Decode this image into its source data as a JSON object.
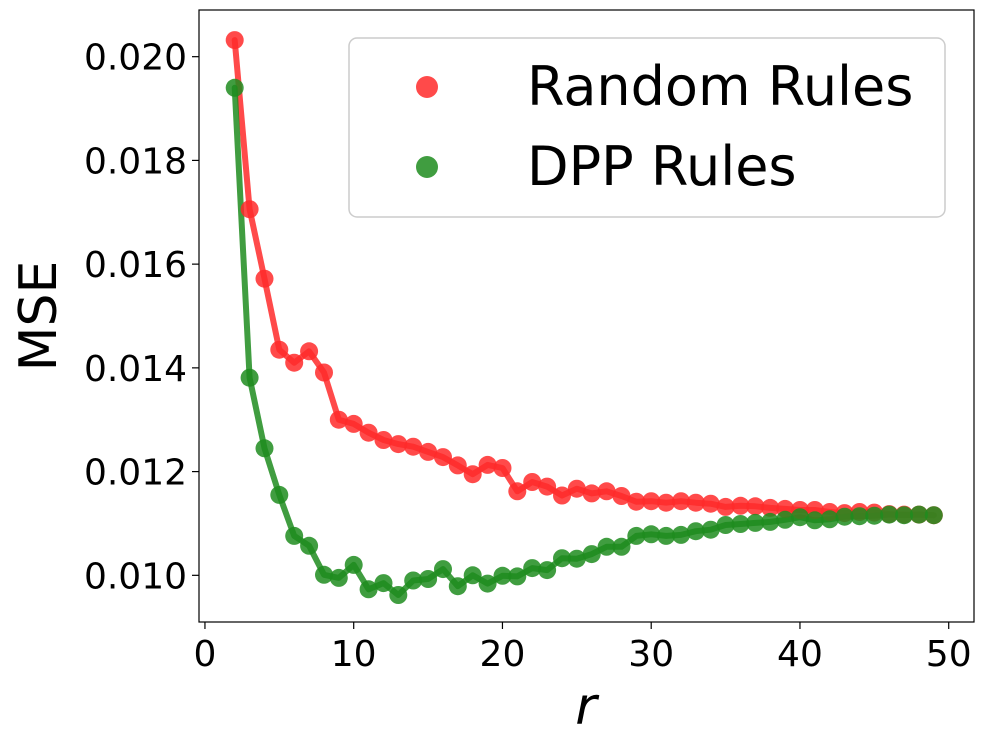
{
  "chart_data": {
    "type": "line",
    "title": "",
    "xlabel": "r",
    "ylabel": "MSE",
    "xlim": [
      -0.4,
      51.7
    ],
    "ylim": [
      0.0091,
      0.0209
    ],
    "xticks": [
      0,
      10,
      20,
      30,
      40,
      50
    ],
    "xtick_labels": [
      "0",
      "10",
      "20",
      "30",
      "40",
      "50"
    ],
    "yticks": [
      0.01,
      0.012,
      0.014,
      0.016,
      0.018,
      0.02
    ],
    "ytick_labels": [
      "0.010",
      "0.012",
      "0.014",
      "0.016",
      "0.018",
      "0.020"
    ],
    "grid": false,
    "legend_position": "top-right",
    "series": [
      {
        "name": "Random Rules",
        "color": "#ff2a2a",
        "x": [
          2,
          3,
          4,
          5,
          6,
          7,
          8,
          9,
          10,
          11,
          12,
          13,
          14,
          15,
          16,
          17,
          18,
          19,
          20,
          21,
          22,
          23,
          24,
          25,
          26,
          27,
          28,
          29,
          30,
          31,
          32,
          33,
          34,
          35,
          36,
          37,
          38,
          39,
          40,
          41,
          42,
          43,
          44,
          45,
          46,
          47,
          48,
          49
        ],
        "y": [
          0.02032,
          0.01706,
          0.01572,
          0.01435,
          0.0141,
          0.01432,
          0.01391,
          0.013,
          0.01292,
          0.01275,
          0.01261,
          0.01253,
          0.01248,
          0.01238,
          0.01228,
          0.01212,
          0.01195,
          0.01213,
          0.01207,
          0.01162,
          0.0118,
          0.01171,
          0.01154,
          0.01167,
          0.01158,
          0.01162,
          0.01153,
          0.01142,
          0.01143,
          0.0114,
          0.01143,
          0.0114,
          0.01138,
          0.01132,
          0.01134,
          0.01133,
          0.0113,
          0.01128,
          0.01126,
          0.01126,
          0.01122,
          0.0112,
          0.01122,
          0.01121,
          0.01118,
          0.01117,
          0.01117,
          0.01116
        ]
      },
      {
        "name": "DPP Rules",
        "color": "#1e8c1e",
        "x": [
          2,
          3,
          4,
          5,
          6,
          7,
          8,
          9,
          10,
          11,
          12,
          13,
          14,
          15,
          16,
          17,
          18,
          19,
          20,
          21,
          22,
          23,
          24,
          25,
          26,
          27,
          28,
          29,
          30,
          31,
          32,
          33,
          34,
          35,
          36,
          37,
          38,
          39,
          40,
          41,
          42,
          43,
          44,
          45,
          46,
          47,
          48,
          49
        ],
        "y": [
          0.0194,
          0.01381,
          0.01245,
          0.01155,
          0.01076,
          0.01057,
          0.01001,
          0.00995,
          0.0102,
          0.00973,
          0.00985,
          0.00962,
          0.0099,
          0.00993,
          0.01012,
          0.00979,
          0.01,
          0.00984,
          0.00999,
          0.00998,
          0.01014,
          0.0101,
          0.01033,
          0.01032,
          0.01041,
          0.01055,
          0.01055,
          0.01076,
          0.01079,
          0.01076,
          0.01078,
          0.01085,
          0.01088,
          0.01097,
          0.01099,
          0.01101,
          0.01103,
          0.01107,
          0.01112,
          0.01106,
          0.01108,
          0.01113,
          0.01114,
          0.01115,
          0.01117,
          0.01116,
          0.01117,
          0.01116
        ]
      }
    ]
  }
}
